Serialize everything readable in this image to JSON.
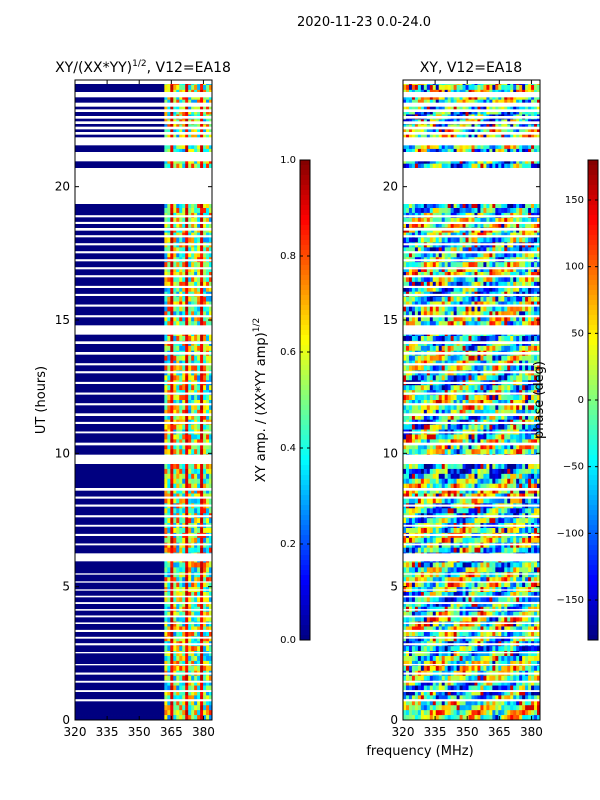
{
  "chart_data": [
    {
      "type": "heatmap",
      "suptitle": "2020-11-23 0.0-24.0",
      "title": "XY/(XX*YY)",
      "title_exp": "1/2",
      "title_suffix": ", V12=EA18",
      "ylabel": "UT (hours)",
      "xlabel": "",
      "xlim": [
        320,
        384
      ],
      "ylim": [
        0,
        24
      ],
      "xticks": [
        320,
        335,
        350,
        365,
        380
      ],
      "yticks": [
        0,
        5,
        10,
        15,
        20
      ],
      "band_start": 363,
      "colorbar": {
        "label": "XY amp. / (XX*YY amp)",
        "label_exp": "1/2",
        "min": 0.0,
        "max": 1.0,
        "ticks": [
          "0.0",
          "0.2",
          "0.4",
          "0.6",
          "0.8",
          "1.0"
        ]
      }
    },
    {
      "type": "heatmap",
      "title": "XY, V12=EA18",
      "ylabel": "",
      "xlabel": "frequency (MHz)",
      "xlim": [
        320,
        384
      ],
      "ylim": [
        0,
        24
      ],
      "xticks": [
        320,
        335,
        350,
        365,
        380
      ],
      "yticks": [
        0,
        5,
        10,
        15,
        20
      ],
      "colorbar": {
        "label": "phase (deg)",
        "min": -180,
        "max": 180,
        "ticks": [
          "−150",
          "−100",
          "−50",
          "0",
          "50",
          "100",
          "150"
        ]
      }
    }
  ],
  "flagged_gaps_hours": [
    [
      0.7,
      0.78
    ],
    [
      1.05,
      1.12
    ],
    [
      1.4,
      1.47
    ],
    [
      1.7,
      1.78
    ],
    [
      2.05,
      2.1
    ],
    [
      2.5,
      2.55
    ],
    [
      2.8,
      2.88
    ],
    [
      3.05,
      3.12
    ],
    [
      3.3,
      3.38
    ],
    [
      3.6,
      3.66
    ],
    [
      3.85,
      3.92
    ],
    [
      4.1,
      4.16
    ],
    [
      4.35,
      4.42
    ],
    [
      4.6,
      4.66
    ],
    [
      4.85,
      4.9
    ],
    [
      5.15,
      5.2
    ],
    [
      5.45,
      5.5
    ],
    [
      5.95,
      6.25
    ],
    [
      6.55,
      6.62
    ],
    [
      6.9,
      6.98
    ],
    [
      7.25,
      7.32
    ],
    [
      7.6,
      7.68
    ],
    [
      8.0,
      8.08
    ],
    [
      8.3,
      8.38
    ],
    [
      8.6,
      8.7
    ],
    [
      9.6,
      9.95
    ],
    [
      10.3,
      10.4
    ],
    [
      10.75,
      10.82
    ],
    [
      11.1,
      11.18
    ],
    [
      11.4,
      11.5
    ],
    [
      11.8,
      11.88
    ],
    [
      12.2,
      12.28
    ],
    [
      12.6,
      12.68
    ],
    [
      13.0,
      13.08
    ],
    [
      13.3,
      13.38
    ],
    [
      13.7,
      13.8
    ],
    [
      14.1,
      14.2
    ],
    [
      14.45,
      14.8
    ],
    [
      15.1,
      15.18
    ],
    [
      15.5,
      15.58
    ],
    [
      15.9,
      15.98
    ],
    [
      16.2,
      16.28
    ],
    [
      16.6,
      16.68
    ],
    [
      16.9,
      16.98
    ],
    [
      17.2,
      17.28
    ],
    [
      17.5,
      17.58
    ],
    [
      17.8,
      17.88
    ],
    [
      18.1,
      18.18
    ],
    [
      18.35,
      18.45
    ],
    [
      18.6,
      18.68
    ],
    [
      18.85,
      18.93
    ],
    [
      19.35,
      20.7
    ],
    [
      20.95,
      21.3
    ],
    [
      21.55,
      21.85
    ],
    [
      21.95,
      22.05
    ],
    [
      22.15,
      22.25
    ],
    [
      22.35,
      22.45
    ],
    [
      22.55,
      22.65
    ],
    [
      22.8,
      22.9
    ],
    [
      23.0,
      23.15
    ],
    [
      23.35,
      23.55
    ],
    [
      23.85,
      24.0
    ]
  ]
}
